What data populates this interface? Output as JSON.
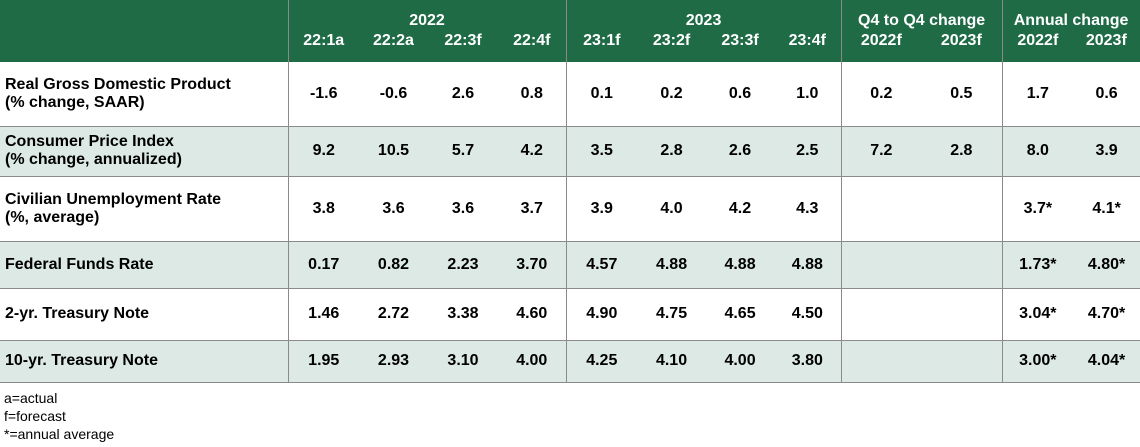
{
  "headers": {
    "group_2022": "2022",
    "group_2023": "2023",
    "group_q4": "Q4 to Q4 change",
    "group_annual": "Annual change",
    "columns": [
      "22:1a",
      "22:2a",
      "22:3f",
      "22:4f",
      "23:1f",
      "23:2f",
      "23:3f",
      "23:4f",
      "2022f",
      "2023f",
      "2022f",
      "2023f"
    ]
  },
  "rows": [
    {
      "label_line1": "Real Gross Domestic Product",
      "label_line2": "(% change, SAAR)",
      "values": [
        "-1.6",
        "-0.6",
        "2.6",
        "0.8",
        "0.1",
        "0.2",
        "0.6",
        "1.0",
        "0.2",
        "0.5",
        "1.7",
        "0.6"
      ]
    },
    {
      "label_line1": "Consumer Price Index",
      "label_line2": "(% change, annualized)",
      "values": [
        "9.2",
        "10.5",
        "5.7",
        "4.2",
        "3.5",
        "2.8",
        "2.6",
        "2.5",
        "7.2",
        "2.8",
        "8.0",
        "3.9"
      ]
    },
    {
      "label_line1": "Civilian Unemployment Rate",
      "label_line2": "(%, average)",
      "values": [
        "3.8",
        "3.6",
        "3.6",
        "3.7",
        "3.9",
        "4.0",
        "4.2",
        "4.3",
        "",
        "",
        "3.7*",
        "4.1*"
      ]
    },
    {
      "label_line1": "Federal Funds Rate",
      "label_line2": "",
      "values": [
        "0.17",
        "0.82",
        "2.23",
        "3.70",
        "4.57",
        "4.88",
        "4.88",
        "4.88",
        "",
        "",
        "1.73*",
        "4.80*"
      ]
    },
    {
      "label_line1": "2-yr. Treasury Note",
      "label_line2": "",
      "values": [
        "1.46",
        "2.72",
        "3.38",
        "4.60",
        "4.90",
        "4.75",
        "4.65",
        "4.50",
        "",
        "",
        "3.04*",
        "4.70*"
      ]
    },
    {
      "label_line1": "10-yr. Treasury Note",
      "label_line2": "",
      "values": [
        "1.95",
        "2.93",
        "3.10",
        "4.00",
        "4.25",
        "4.10",
        "4.00",
        "3.80",
        "",
        "",
        "3.00*",
        "4.04*"
      ]
    }
  ],
  "notes": [
    "a=actual",
    "f=forecast",
    "*=annual average"
  ],
  "colors": {
    "header_bg": "#1e6b46",
    "header_text": "#ffffff",
    "shaded_row": "#dce9e4",
    "plain_row": "#ffffff",
    "grid": "#8a8a8a"
  },
  "chart_data": {
    "type": "table",
    "columns": [
      "22:1a",
      "22:2a",
      "22:3f",
      "22:4f",
      "23:1f",
      "23:2f",
      "23:3f",
      "23:4f",
      "Q4 to Q4 change 2022f",
      "Q4 to Q4 change 2023f",
      "Annual change 2022f",
      "Annual change 2023f"
    ],
    "column_groups": [
      {
        "name": "2022",
        "columns": [
          "22:1a",
          "22:2a",
          "22:3f",
          "22:4f"
        ]
      },
      {
        "name": "2023",
        "columns": [
          "23:1f",
          "23:2f",
          "23:3f",
          "23:4f"
        ]
      },
      {
        "name": "Q4 to Q4 change",
        "columns": [
          "2022f",
          "2023f"
        ]
      },
      {
        "name": "Annual change",
        "columns": [
          "2022f",
          "2023f"
        ]
      }
    ],
    "rows": [
      {
        "name": "Real Gross Domestic Product (% change, SAAR)",
        "values": [
          -1.6,
          -0.6,
          2.6,
          0.8,
          0.1,
          0.2,
          0.6,
          1.0,
          0.2,
          0.5,
          1.7,
          0.6
        ]
      },
      {
        "name": "Consumer Price Index (% change, annualized)",
        "values": [
          9.2,
          10.5,
          5.7,
          4.2,
          3.5,
          2.8,
          2.6,
          2.5,
          7.2,
          2.8,
          8.0,
          3.9
        ]
      },
      {
        "name": "Civilian Unemployment Rate (%, average)",
        "values": [
          3.8,
          3.6,
          3.6,
          3.7,
          3.9,
          4.0,
          4.2,
          4.3,
          null,
          null,
          3.7,
          4.1
        ]
      },
      {
        "name": "Federal Funds Rate",
        "values": [
          0.17,
          0.82,
          2.23,
          3.7,
          4.57,
          4.88,
          4.88,
          4.88,
          null,
          null,
          1.73,
          4.8
        ]
      },
      {
        "name": "2-yr. Treasury Note",
        "values": [
          1.46,
          2.72,
          3.38,
          4.6,
          4.9,
          4.75,
          4.65,
          4.5,
          null,
          null,
          3.04,
          4.7
        ]
      },
      {
        "name": "10-yr. Treasury Note",
        "values": [
          1.95,
          2.93,
          3.1,
          4.0,
          4.25,
          4.1,
          4.0,
          3.8,
          null,
          null,
          3.0,
          4.04
        ]
      }
    ]
  }
}
